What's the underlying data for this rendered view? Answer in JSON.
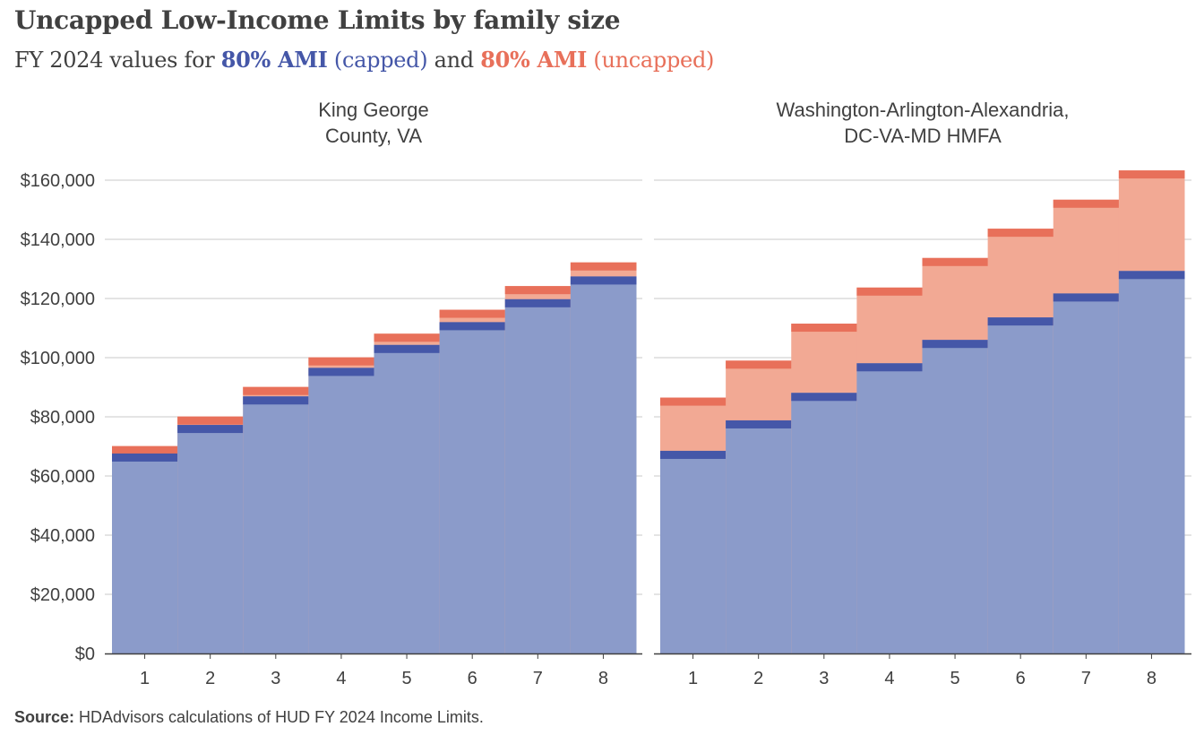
{
  "title": "Uncapped Low-Income Limits by family size",
  "subtitle": {
    "prefix": "FY 2024 values for ",
    "capped_bold": "80% AMI",
    "capped_rest": " (capped)",
    "middle": " and ",
    "uncapped_bold": "80% AMI",
    "uncapped_rest": " (uncapped)"
  },
  "source": {
    "label": "Source:",
    "text": " HDAdvisors  calculations of HUD FY 2024 Income Limits."
  },
  "colors": {
    "capped_fill": "#8b9bca",
    "capped_line": "#4557a8",
    "uncapped_fill": "#f2a994",
    "uncapped_line": "#e8705a",
    "grid": "#c8c8c8",
    "axis": "#404040"
  },
  "chart_data": [
    {
      "type": "area",
      "step": true,
      "title": "King George\nCounty, VA",
      "categories": [
        "1",
        "2",
        "3",
        "4",
        "5",
        "6",
        "7",
        "8"
      ],
      "ylim": [
        0,
        160000
      ],
      "yticks": [
        0,
        20000,
        40000,
        60000,
        80000,
        100000,
        120000,
        140000,
        160000
      ],
      "ytick_labels": [
        "$0",
        "$20,000",
        "$40,000",
        "$60,000",
        "$80,000",
        "$100,000",
        "$120,000",
        "$140,000",
        "$160,000"
      ],
      "grid": true,
      "series": [
        {
          "name": "80% AMI (capped)",
          "values": [
            67600,
            77250,
            86900,
            96550,
            104300,
            112000,
            119750,
            127450
          ]
        },
        {
          "name": "80% AMI (uncapped)",
          "values": [
            70100,
            80100,
            90100,
            100100,
            108100,
            116200,
            124200,
            132200
          ]
        }
      ]
    },
    {
      "type": "area",
      "step": true,
      "title": "Washington-Arlington-Alexandria,\nDC-VA-MD HMFA",
      "categories": [
        "1",
        "2",
        "3",
        "4",
        "5",
        "6",
        "7",
        "8"
      ],
      "ylim": [
        0,
        160000
      ],
      "yticks": [
        0,
        20000,
        40000,
        60000,
        80000,
        100000,
        120000,
        140000,
        160000
      ],
      "ytick_labels": [
        "$0",
        "$20,000",
        "$40,000",
        "$60,000",
        "$80,000",
        "$100,000",
        "$120,000",
        "$140,000",
        "$160,000"
      ],
      "grid": true,
      "series": [
        {
          "name": "80% AMI (capped)",
          "values": [
            68500,
            78800,
            88100,
            98100,
            106000,
            113600,
            121700,
            129300
          ]
        },
        {
          "name": "80% AMI (uncapped)",
          "values": [
            86500,
            99000,
            111500,
            123700,
            133700,
            143600,
            153400,
            163300
          ]
        }
      ]
    }
  ]
}
